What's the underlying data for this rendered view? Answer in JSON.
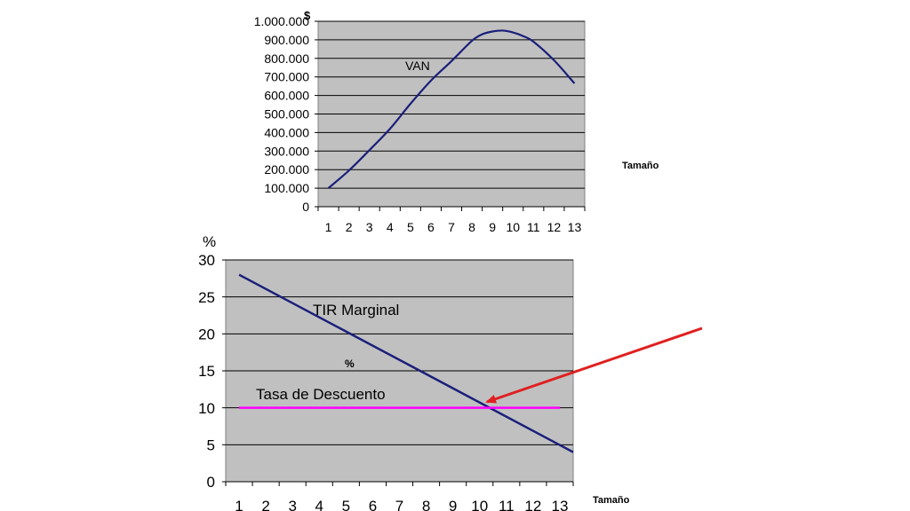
{
  "chart_data": [
    {
      "type": "line",
      "unit_label": "$",
      "xlabel": "Tamaño",
      "categories": [
        "1",
        "2",
        "3",
        "4",
        "5",
        "6",
        "7",
        "8",
        "9",
        "10",
        "11",
        "12",
        "13"
      ],
      "ylim": [
        0,
        1000000
      ],
      "yticks": [
        "0",
        "100.000",
        "200.000",
        "300.000",
        "400.000",
        "500.000",
        "600.000",
        "700.000",
        "800.000",
        "900.000",
        "1.000.000"
      ],
      "grid": true,
      "series": [
        {
          "name": "VAN",
          "color": "#1a1f7a",
          "points": [
            [
              1,
              100000
            ],
            [
              2,
              195000
            ],
            [
              3,
              305000
            ],
            [
              4,
              420000
            ],
            [
              5,
              555000
            ],
            [
              6,
              680000
            ],
            [
              7,
              785000
            ],
            [
              8,
              895000
            ],
            [
              8.5,
              930000
            ],
            [
              9,
              945000
            ],
            [
              9.5,
              950000
            ],
            [
              10,
              940000
            ],
            [
              10.5,
              920000
            ],
            [
              11,
              890000
            ],
            [
              12,
              790000
            ],
            [
              13,
              665000
            ]
          ]
        }
      ]
    },
    {
      "type": "line",
      "unit_label": "%",
      "inner_label": "%",
      "xlabel": "Tamaño",
      "categories": [
        "1",
        "2",
        "3",
        "4",
        "5",
        "6",
        "7",
        "8",
        "9",
        "10",
        "11",
        "12",
        "13"
      ],
      "ylim": [
        0,
        30
      ],
      "yticks": [
        "0",
        "5",
        "10",
        "15",
        "20",
        "25",
        "30"
      ],
      "grid": true,
      "series": [
        {
          "name": "TIR Marginal",
          "color": "#1a1f7a",
          "points": [
            [
              1,
              28
            ],
            [
              13.5,
              4
            ]
          ]
        },
        {
          "name": "Tasa de Descuento",
          "color": "#ff00ff",
          "points": [
            [
              1,
              10
            ],
            [
              13,
              10
            ]
          ]
        }
      ],
      "annotation": {
        "type": "arrow",
        "color": "#e02020",
        "target": [
          10.3,
          10
        ]
      }
    }
  ]
}
